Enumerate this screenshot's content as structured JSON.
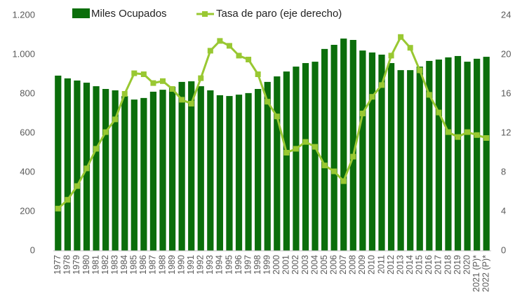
{
  "chart_data": {
    "type": "bar_line",
    "categories": [
      "1977",
      "1978",
      "1979",
      "1980",
      "1981",
      "1982",
      "1983",
      "1984",
      "1985",
      "1986",
      "1987",
      "1988",
      "1989",
      "1990",
      "1991",
      "1992",
      "1993",
      "1994",
      "1995",
      "1996",
      "1997",
      "1998",
      "1999",
      "2000",
      "2001",
      "2002",
      "2003",
      "2004",
      "2005",
      "2006",
      "2007",
      "2008",
      "2009",
      "2010",
      "2011",
      "2012",
      "2013",
      "2014",
      "2015",
      "2016",
      "2017",
      "2018",
      "2019",
      "2020",
      "2021 (P)*",
      "2022 (P)*"
    ],
    "series": [
      {
        "name": "Miles Ocupados",
        "type": "bar",
        "color": "#0b6e0b",
        "values": [
          893,
          879,
          868,
          857,
          839,
          825,
          818,
          789,
          771,
          779,
          811,
          821,
          836,
          861,
          864,
          839,
          818,
          793,
          789,
          796,
          804,
          825,
          861,
          889,
          914,
          939,
          957,
          964,
          1029,
          1050,
          1082,
          1075,
          1021,
          1011,
          1000,
          957,
          921,
          921,
          939,
          968,
          975,
          986,
          993,
          964,
          979,
          989
        ]
      },
      {
        "name": "Tasa de paro (eje derecho)",
        "type": "line",
        "axis": "y2",
        "color": "#99c832",
        "values": [
          4.3,
          5.2,
          6.6,
          8.4,
          10.4,
          12.1,
          13.4,
          16.0,
          18.1,
          18.0,
          17.1,
          17.3,
          16.5,
          15.4,
          15.0,
          17.6,
          20.4,
          21.4,
          20.9,
          19.9,
          19.5,
          18.0,
          15.2,
          13.7,
          10.0,
          10.4,
          11.1,
          10.6,
          8.7,
          8.1,
          7.1,
          9.6,
          14.0,
          15.7,
          16.9,
          19.9,
          21.8,
          20.7,
          18.4,
          15.9,
          14.1,
          12.1,
          11.6,
          12.1,
          11.8,
          11.5
        ]
      }
    ],
    "ylim": [
      0,
      1200
    ],
    "yticks": [
      0,
      200,
      400,
      600,
      800,
      {
        "value": 1000,
        "label": "1.000"
      },
      {
        "value": 1200,
        "label": "1.200"
      }
    ],
    "y2lim": [
      0,
      24
    ],
    "y2ticks": [
      0,
      4,
      8,
      12,
      16,
      20,
      24
    ],
    "legend": "top"
  }
}
